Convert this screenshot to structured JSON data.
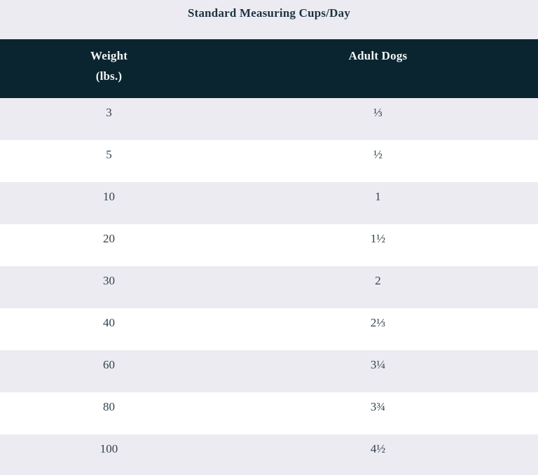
{
  "title": "Standard Measuring Cups/Day",
  "header": {
    "col1_line1": "Weight",
    "col1_line2": "(lbs.)",
    "col2": "Adult Dogs"
  },
  "chart_data": {
    "type": "table",
    "title": "Standard Measuring Cups/Day",
    "columns": [
      "Weight (lbs.)",
      "Adult Dogs"
    ],
    "rows": [
      [
        "3",
        "⅓"
      ],
      [
        "5",
        "½"
      ],
      [
        "10",
        "1"
      ],
      [
        "20",
        "1½"
      ],
      [
        "30",
        "2"
      ],
      [
        "40",
        "2⅓"
      ],
      [
        "60",
        "3¼"
      ],
      [
        "80",
        "3¾"
      ],
      [
        "100",
        "4½"
      ]
    ]
  },
  "colors": {
    "title_bg": "#ECEBF1",
    "header_bg": "#0B2530",
    "header_text": "#F3F5F5",
    "row_alt_bg": "#ECEBF1",
    "row_bg": "#FFFFFF",
    "body_text": "#32434E",
    "title_text": "#1C3342"
  }
}
